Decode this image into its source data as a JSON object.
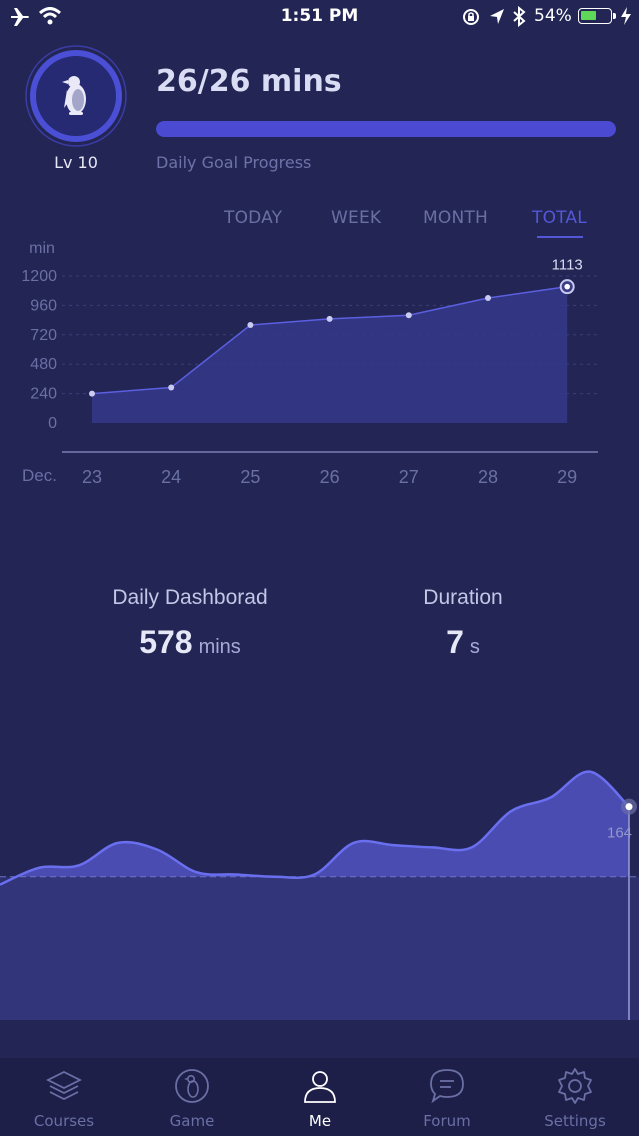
{
  "status": {
    "time": "1:51 PM",
    "battery": "54%",
    "battery_level": 0.54
  },
  "profile": {
    "level": "Lv 10",
    "goal_text": "26/26 mins",
    "goal_progress": 1.0,
    "goal_label": "Daily Goal Progress"
  },
  "tabs": [
    {
      "label": "TODAY",
      "active": false
    },
    {
      "label": "WEEK",
      "active": false
    },
    {
      "label": "MONTH",
      "active": false
    },
    {
      "label": "TOTAL",
      "active": true
    }
  ],
  "chart_data": [
    {
      "type": "area",
      "ylabel": "min",
      "x_prefix": "Dec.",
      "categories": [
        "23",
        "24",
        "25",
        "26",
        "27",
        "28",
        "29"
      ],
      "values": [
        240,
        290,
        800,
        850,
        880,
        1020,
        1113
      ],
      "yticks": [
        0,
        240,
        480,
        720,
        960,
        1200
      ],
      "ylim": [
        0,
        1200
      ],
      "highlight": {
        "index": 6,
        "label": "1113"
      },
      "grid": true
    },
    {
      "type": "area",
      "values": [
        95,
        110,
        112,
        132,
        126,
        106,
        104,
        102,
        104,
        132,
        130,
        128,
        128,
        160,
        172,
        195,
        164
      ],
      "baseline": 102,
      "end_label": "164"
    }
  ],
  "dashboard": {
    "title": "Daily Dashborad",
    "value": "578",
    "unit": "mins"
  },
  "duration": {
    "title": "Duration",
    "value": "7",
    "unit": "s"
  },
  "nav": [
    {
      "label": "Courses",
      "icon": "layers-icon",
      "active": false
    },
    {
      "label": "Game",
      "icon": "penguin-icon",
      "active": false
    },
    {
      "label": "Me",
      "icon": "person-icon",
      "active": true
    },
    {
      "label": "Forum",
      "icon": "chat-bubble-icon",
      "active": false
    },
    {
      "label": "Settings",
      "icon": "gear-icon",
      "active": false
    }
  ],
  "colors": {
    "background": "#232654",
    "accent": "#5457d8",
    "line": "#5b5fe0",
    "fill": "#3a3c87"
  }
}
